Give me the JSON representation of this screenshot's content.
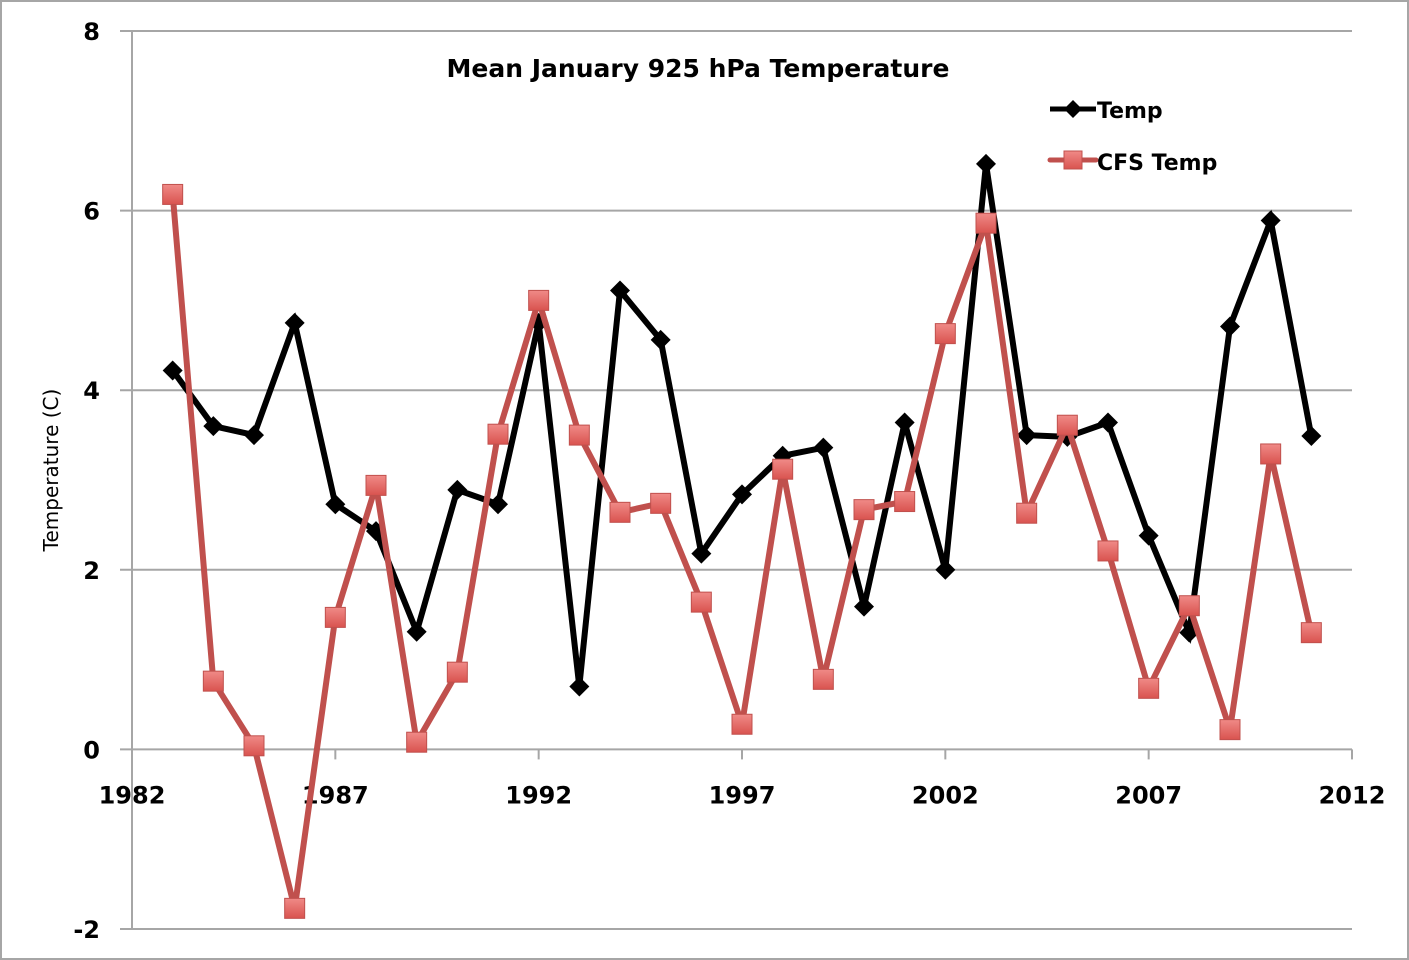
{
  "chart_data": {
    "type": "line",
    "title": "Mean January 925 hPa Temperature",
    "xlabel": "",
    "ylabel": "Temperature (C)",
    "xlim": [
      1982,
      2012
    ],
    "ylim": [
      -2,
      8
    ],
    "xticks": [
      "1982",
      "1987",
      "1992",
      "1997",
      "2002",
      "2007",
      "2012"
    ],
    "yticks": [
      "-2",
      "0",
      "2",
      "4",
      "6",
      "8"
    ],
    "grid": "horizontal",
    "legend_position": "top-right",
    "x": [
      1983,
      1984,
      1985,
      1986,
      1987,
      1988,
      1989,
      1990,
      1991,
      1992,
      1993,
      1994,
      1995,
      1996,
      1997,
      1998,
      1999,
      2000,
      2001,
      2002,
      2003,
      2004,
      2005,
      2006,
      2007,
      2008,
      2009,
      2010,
      2011
    ],
    "series": [
      {
        "name": "Temp",
        "color": "#000000",
        "marker": "diamond",
        "values": [
          4.22,
          3.6,
          3.5,
          4.75,
          2.73,
          2.43,
          1.31,
          2.89,
          2.73,
          4.75,
          0.7,
          5.11,
          4.56,
          2.18,
          2.84,
          3.27,
          3.36,
          1.59,
          3.64,
          2.0,
          6.52,
          3.5,
          3.48,
          3.64,
          2.38,
          1.3,
          4.71,
          5.89,
          3.49
        ]
      },
      {
        "name": "CFS Temp",
        "color": "#c0504d",
        "marker": "square",
        "values": [
          6.18,
          0.76,
          0.04,
          -1.77,
          1.47,
          2.94,
          0.08,
          0.86,
          3.51,
          5.0,
          3.5,
          2.64,
          2.74,
          1.64,
          0.28,
          3.12,
          0.78,
          2.67,
          2.76,
          4.63,
          5.86,
          2.63,
          3.61,
          2.21,
          0.68,
          1.6,
          0.22,
          3.29,
          1.3
        ]
      }
    ]
  }
}
